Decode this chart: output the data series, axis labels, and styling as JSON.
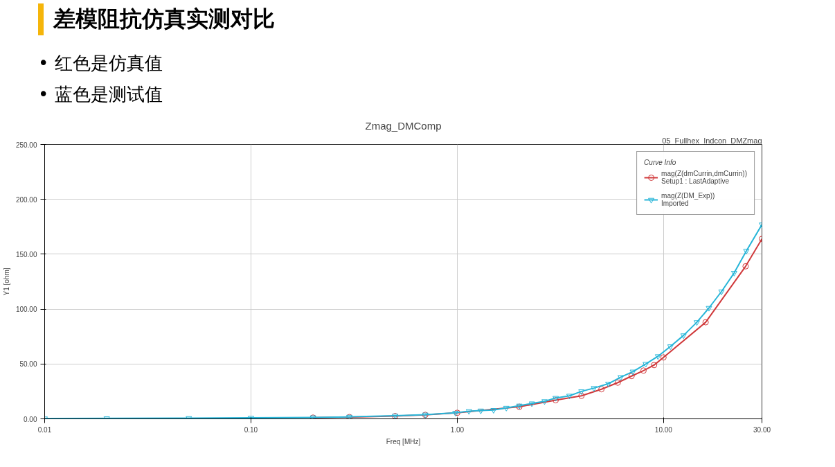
{
  "chart_data": {
    "type": "line",
    "title": "Zmag_DMComp",
    "xlabel": "Freq [MHz]",
    "ylabel": "Y1 [ohm]",
    "legend_title": "Curve Info",
    "annotations": [
      "差模阻抗仿真实测对比",
      "• 红色是仿真值",
      "• 蓝色是测试值",
      "05_Fullhex_Indcon_DMZmag"
    ],
    "log": "x",
    "xlim": [
      0.01,
      30
    ],
    "ylim": [
      0,
      250
    ],
    "xticks": [
      {
        "value": 0.01,
        "label": "0.01"
      },
      {
        "value": 0.1,
        "label": "0.10"
      },
      {
        "value": 1,
        "label": "1.00"
      },
      {
        "value": 10,
        "label": "10.00"
      },
      {
        "value": 30,
        "label": "30.00"
      }
    ],
    "yticks": [
      {
        "value": 0,
        "label": "0.00"
      },
      {
        "value": 50,
        "label": "50.00"
      },
      {
        "value": 100,
        "label": "100.00"
      },
      {
        "value": 150,
        "label": "150.00"
      },
      {
        "value": 200,
        "label": "200.00"
      },
      {
        "value": 250,
        "label": "250.00"
      }
    ],
    "grid": true,
    "legend": "top right",
    "series": [
      {
        "name": "mag(Z(dmCurrin,dmCurrin))\nSetup1 : LastAdaptive",
        "color": "#d0393b",
        "marker": "circle",
        "x": [
          0.2,
          0.3,
          0.5,
          0.7,
          1.0,
          2.0,
          3.0,
          4.0,
          5.0,
          6.0,
          7.0,
          8.0,
          9.0,
          10.0,
          16.0,
          25.0,
          30.0
        ],
        "values": [
          1.1,
          1.6,
          2.5,
          3.6,
          5.5,
          11,
          17,
          21,
          27,
          33,
          39,
          44,
          49,
          56,
          88,
          139,
          164
        ]
      },
      {
        "name": "mag(Z(DM_Exp))\nImported",
        "color": "#27b5d8",
        "marker": "triangle",
        "x": [
          0.01,
          0.02,
          0.05,
          0.1,
          0.2,
          0.3,
          0.5,
          0.7,
          0.98,
          1.14,
          1.3,
          1.5,
          1.73,
          2.0,
          2.3,
          2.65,
          3.0,
          3.5,
          4.0,
          4.6,
          5.4,
          6.2,
          7.1,
          8.2,
          9.4,
          10.8,
          12.5,
          14.5,
          16.6,
          19.1,
          22.0,
          25.2,
          30.0
        ],
        "values": [
          0.3,
          0.4,
          0.6,
          0.9,
          1.3,
          1.8,
          2.8,
          3.8,
          5.5,
          7,
          7.5,
          8,
          10,
          12,
          14,
          16,
          19,
          21,
          25,
          28,
          32,
          38,
          43,
          50,
          57,
          66,
          76,
          88,
          101,
          116,
          133,
          153,
          177
        ]
      }
    ]
  }
}
